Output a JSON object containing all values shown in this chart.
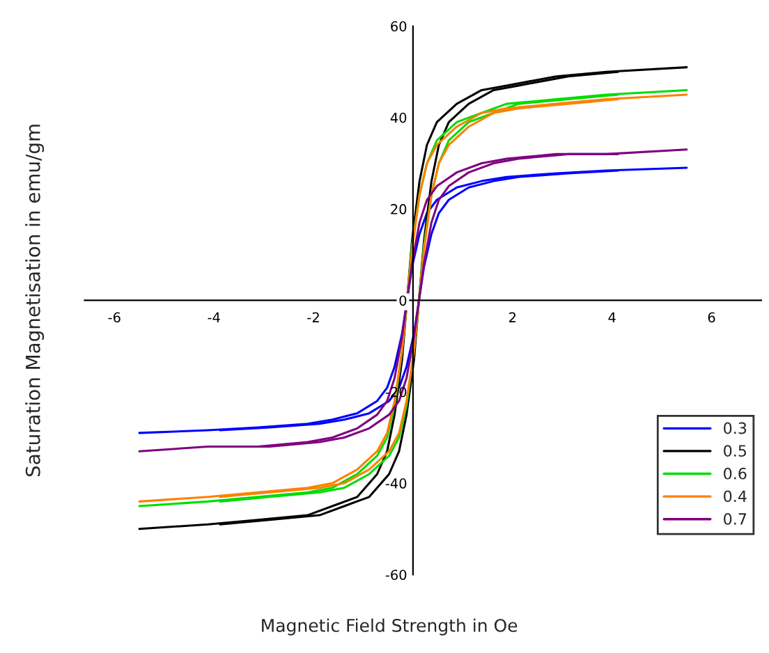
{
  "chart_data": {
    "type": "line",
    "xlabel": "Magnetic Field Strength in Oe",
    "ylabel": "Saturation Magnetisation in emu/gm",
    "x": [
      5.5,
      3.88,
      2.88,
      1.88,
      1.38,
      0.88,
      0.48,
      0.28,
      0.13,
      -0.02,
      -0.12,
      -0.22,
      -0.37,
      -0.52,
      -0.72,
      -1.12,
      -1.62,
      -2.12,
      -3.12,
      -4.12,
      -5.5
    ],
    "series": [
      {
        "name": "0.3",
        "color": "#0000ff",
        "values": [
          29,
          28.4,
          27.8,
          27,
          26.1,
          24.7,
          22,
          19.1,
          14.5,
          7.3,
          0,
          -7.3,
          -14.5,
          -19.1,
          -22,
          -24.7,
          -26.1,
          -27,
          -27.8,
          -28.4,
          -29
        ]
      },
      {
        "color": "#0000ff",
        "x": [
          -3.88,
          -2.88,
          -1.88,
          -1.38,
          -0.88,
          -0.48,
          -0.28,
          -0.13,
          0.02,
          0.12,
          0.22,
          0.37,
          0.52,
          0.72,
          1.12,
          1.62,
          2.12,
          3.12,
          4.12
        ],
        "values": [
          -28.4,
          -27.8,
          -27,
          -26.1,
          -24.7,
          -22,
          -19.1,
          -14.5,
          -7.3,
          0,
          7.3,
          14.5,
          19.1,
          22,
          24.7,
          26.1,
          27,
          27.8,
          28.4
        ]
      },
      {
        "name": "0.5",
        "color": "#000000",
        "values": [
          51,
          50,
          49,
          47,
          46,
          43,
          39,
          34,
          26,
          13,
          0,
          -13,
          -25,
          -33,
          -38,
          -43,
          -45,
          -47,
          -48,
          -49,
          -50
        ]
      },
      {
        "color": "#000000",
        "x": [
          -3.88,
          -2.88,
          -1.88,
          -1.38,
          -0.88,
          -0.48,
          -0.28,
          -0.13,
          0.02,
          0.12,
          0.22,
          0.37,
          0.52,
          0.72,
          1.12,
          1.62,
          2.12,
          3.12,
          4.12
        ],
        "values": [
          -49,
          -48,
          -47,
          -45,
          -43,
          -38,
          -33,
          -25,
          -13,
          0,
          13,
          26,
          34,
          39,
          43,
          46,
          47,
          49,
          50
        ]
      },
      {
        "name": "0.6",
        "color": "#00dd00",
        "values": [
          46,
          45,
          44,
          43,
          41,
          39,
          35,
          30,
          23,
          12,
          0,
          -11,
          -23,
          -30,
          -34,
          -38,
          -41,
          -42,
          -43,
          -44,
          -45
        ]
      },
      {
        "color": "#00dd00",
        "x": [
          -3.88,
          -2.88,
          -1.88,
          -1.38,
          -0.88,
          -0.48,
          -0.28,
          -0.13,
          0.02,
          0.12,
          0.22,
          0.37,
          0.52,
          0.72,
          1.12,
          1.62,
          2.12,
          3.12,
          4.12
        ],
        "values": [
          -44,
          -43,
          -42,
          -41,
          -38,
          -34,
          -30,
          -23,
          -11,
          0,
          12,
          23,
          30,
          35,
          39,
          41,
          43,
          44,
          45
        ]
      },
      {
        "name": "0.4",
        "color": "#ff8000",
        "values": [
          45,
          44,
          43,
          42,
          41,
          38,
          34,
          30,
          23,
          11,
          0,
          -11,
          -22,
          -29,
          -33,
          -37,
          -40,
          -41,
          -42,
          -43,
          -44
        ]
      },
      {
        "color": "#ff8000",
        "x": [
          -3.88,
          -2.88,
          -1.88,
          -1.38,
          -0.88,
          -0.48,
          -0.28,
          -0.13,
          0.02,
          0.12,
          0.22,
          0.37,
          0.52,
          0.72,
          1.12,
          1.62,
          2.12,
          3.12,
          4.12
        ],
        "values": [
          -43,
          -42,
          -41,
          -40,
          -37,
          -33,
          -29,
          -22,
          -11,
          0,
          11,
          23,
          30,
          34,
          38,
          41,
          42,
          43,
          44
        ]
      },
      {
        "name": "0.7",
        "color": "#800080",
        "values": [
          33,
          32,
          32,
          31,
          30,
          28,
          25,
          22,
          17,
          8,
          0,
          -8,
          -17,
          -22,
          -25,
          -28,
          -30,
          -31,
          -32,
          -32,
          -33
        ]
      },
      {
        "color": "#800080",
        "x": [
          -3.88,
          -2.88,
          -1.88,
          -1.38,
          -0.88,
          -0.48,
          -0.28,
          -0.13,
          0.02,
          0.12,
          0.22,
          0.37,
          0.52,
          0.72,
          1.12,
          1.62,
          2.12,
          3.12,
          4.12
        ],
        "values": [
          -32,
          -32,
          -31,
          -30,
          -28,
          -25,
          -22,
          -17,
          -8,
          0,
          8,
          17,
          22,
          25,
          28,
          30,
          31,
          32,
          32
        ]
      }
    ],
    "xlim": [
      -6.6,
      7.0
    ],
    "ylim": [
      -60,
      60
    ],
    "xticks": [
      -6,
      -4,
      -2,
      {
        "value": 0,
        "label": null
      },
      2,
      4,
      6
    ],
    "yticks": [
      -60,
      -40,
      -20,
      0,
      20,
      40,
      60
    ],
    "legend": "bottom right"
  }
}
